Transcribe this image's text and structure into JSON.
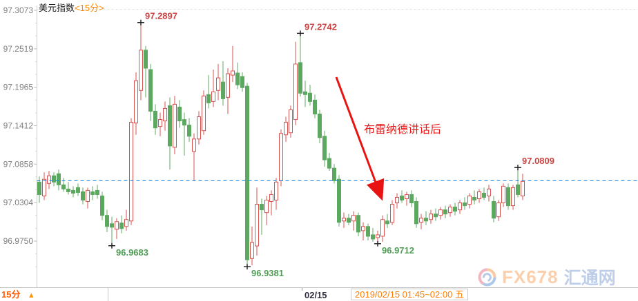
{
  "header": {
    "title": "美元指数",
    "period_tag": "<15分>"
  },
  "annotation": {
    "text": "布雷纳德讲话后"
  },
  "footer": {
    "period_label": "15分",
    "up_arrow": "▲",
    "date_label": "02/15",
    "session_info": "2019/02/15 01:45~02:00 五"
  },
  "watermark": {
    "icon": "globe-swirl-icon",
    "brand": "FX678",
    "site": "汇通网"
  },
  "colors": {
    "up": "#d9514e",
    "down": "#5ca860",
    "last_price_line": "#1f86e0",
    "grid": "#e2e2e2",
    "axis": "#cccccc",
    "tick_label": "#7f7f7f",
    "high_label": "#cb4242",
    "low_label": "#4f9e55",
    "annotation_arrow": "#e81414",
    "marker_cross": "#1a1a1a"
  },
  "chart_data": {
    "type": "candlestick",
    "title": "美元指数",
    "interval": "15分",
    "date": "2019/02/15",
    "session": "01:45~02:00 五",
    "y_ticks": [
      97.3073,
      97.2519,
      97.1965,
      97.1412,
      97.0858,
      97.0304,
      96.975
    ],
    "last_price": 97.062,
    "markers": [
      {
        "price": 97.2897,
        "side": "high",
        "label": "97.2897"
      },
      {
        "price": 97.2742,
        "side": "high",
        "label": "97.2742"
      },
      {
        "price": 97.0809,
        "side": "high",
        "label": "97.0809"
      },
      {
        "price": 96.9683,
        "side": "low",
        "label": "96.9683"
      },
      {
        "price": 96.9381,
        "side": "low",
        "label": "96.9381"
      },
      {
        "price": 96.9712,
        "side": "low",
        "label": "96.9712"
      }
    ],
    "candles": [
      [
        97.06,
        97.068,
        97.03,
        97.042
      ],
      [
        97.04,
        97.074,
        97.034,
        97.064
      ],
      [
        97.058,
        97.076,
        97.05,
        97.069
      ],
      [
        97.069,
        97.074,
        97.054,
        97.06
      ],
      [
        97.072,
        97.078,
        97.048,
        97.056
      ],
      [
        97.056,
        97.066,
        97.046,
        97.05
      ],
      [
        97.05,
        97.06,
        97.042,
        97.046
      ],
      [
        97.048,
        97.054,
        97.038,
        97.044
      ],
      [
        97.052,
        97.058,
        97.04,
        97.045
      ],
      [
        97.046,
        97.052,
        97.028,
        97.034
      ],
      [
        97.032,
        97.052,
        97.022,
        97.048
      ],
      [
        97.046,
        97.054,
        97.034,
        97.042
      ],
      [
        97.048,
        97.056,
        97.036,
        97.042
      ],
      [
        97.04,
        97.046,
        97.005,
        97.012
      ],
      [
        97.012,
        97.02,
        96.988,
        96.996
      ],
      [
        97.0,
        97.01,
        96.9683,
        96.995
      ],
      [
        96.992,
        97.008,
        96.978,
        97.003
      ],
      [
        97.001,
        97.012,
        96.986,
        96.993
      ],
      [
        96.996,
        97.02,
        96.99,
        97.006
      ],
      [
        97.004,
        97.152,
        96.998,
        97.146
      ],
      [
        97.145,
        97.218,
        97.128,
        97.206
      ],
      [
        97.192,
        97.2897,
        97.178,
        97.25
      ],
      [
        97.25,
        97.256,
        97.182,
        97.224
      ],
      [
        97.222,
        97.23,
        97.148,
        97.162
      ],
      [
        97.162,
        97.172,
        97.128,
        97.138
      ],
      [
        97.14,
        97.16,
        97.126,
        97.15
      ],
      [
        97.148,
        97.176,
        97.134,
        97.166
      ],
      [
        97.17,
        97.182,
        97.078,
        97.112
      ],
      [
        97.11,
        97.184,
        97.1,
        97.172
      ],
      [
        97.168,
        97.178,
        97.138,
        97.148
      ],
      [
        97.15,
        97.16,
        97.098,
        97.142
      ],
      [
        97.142,
        97.152,
        97.118,
        97.126
      ],
      [
        97.104,
        97.13,
        97.062,
        97.122
      ],
      [
        97.122,
        97.162,
        97.114,
        97.154
      ],
      [
        97.134,
        97.192,
        97.128,
        97.184
      ],
      [
        97.186,
        97.214,
        97.166,
        97.174
      ],
      [
        97.176,
        97.222,
        97.168,
        97.19
      ],
      [
        97.192,
        97.23,
        97.178,
        97.21
      ],
      [
        97.204,
        97.234,
        97.17,
        97.18
      ],
      [
        97.182,
        97.224,
        97.158,
        97.216
      ],
      [
        97.214,
        97.256,
        97.204,
        97.22
      ],
      [
        97.217,
        97.232,
        97.194,
        97.2
      ],
      [
        97.212,
        97.218,
        97.19,
        97.196
      ],
      [
        97.198,
        97.203,
        96.9381,
        96.948
      ],
      [
        96.95,
        96.996,
        96.94,
        96.973
      ],
      [
        96.968,
        97.052,
        96.954,
        97.028
      ],
      [
        97.028,
        97.036,
        96.984,
        97.02
      ],
      [
        97.016,
        97.04,
        96.998,
        97.034
      ],
      [
        97.032,
        97.048,
        97.012,
        97.042
      ],
      [
        97.034,
        97.066,
        97.02,
        97.06
      ],
      [
        97.062,
        97.136,
        97.054,
        97.13
      ],
      [
        97.128,
        97.154,
        97.118,
        97.146
      ],
      [
        97.131,
        97.17,
        97.124,
        97.164
      ],
      [
        97.15,
        97.262,
        97.142,
        97.23
      ],
      [
        97.232,
        97.2742,
        97.183,
        97.188
      ],
      [
        97.19,
        97.206,
        97.168,
        97.186
      ],
      [
        97.188,
        97.2,
        97.17,
        97.176
      ],
      [
        97.178,
        97.186,
        97.152,
        97.158
      ],
      [
        97.158,
        97.164,
        97.116,
        97.124
      ],
      [
        97.126,
        97.134,
        97.082,
        97.092
      ],
      [
        97.094,
        97.102,
        97.076,
        97.08
      ],
      [
        97.08,
        97.086,
        97.058,
        97.062
      ],
      [
        97.064,
        97.07,
        96.996,
        97.002
      ],
      [
        97.004,
        97.016,
        96.994,
        97.008
      ],
      [
        97.008,
        97.014,
        96.998,
        97.002
      ],
      [
        97.004,
        97.018,
        96.99,
        97.012
      ],
      [
        97.012,
        97.016,
        96.982,
        96.988
      ],
      [
        96.99,
        97.002,
        96.976,
        96.996
      ],
      [
        96.996,
        97.0,
        96.976,
        96.982
      ],
      [
        96.984,
        96.994,
        96.974,
        96.978
      ],
      [
        96.98,
        96.99,
        96.9712,
        96.984
      ],
      [
        96.982,
        97.012,
        96.974,
        97.006
      ],
      [
        97.004,
        97.014,
        96.994,
        97.0
      ],
      [
        97.002,
        97.034,
        96.998,
        97.028
      ],
      [
        97.03,
        97.044,
        97.022,
        97.038
      ],
      [
        97.04,
        97.048,
        97.03,
        97.034
      ],
      [
        97.036,
        97.046,
        97.026,
        97.042
      ],
      [
        97.042,
        97.048,
        97.024,
        97.03
      ],
      [
        97.032,
        97.038,
        96.994,
        97.0
      ],
      [
        97.002,
        97.014,
        96.992,
        97.008
      ],
      [
        97.008,
        97.018,
        96.998,
        97.004
      ],
      [
        97.006,
        97.02,
        97.0,
        97.014
      ],
      [
        97.014,
        97.022,
        97.004,
        97.01
      ],
      [
        97.012,
        97.024,
        97.006,
        97.02
      ],
      [
        97.02,
        97.026,
        97.008,
        97.014
      ],
      [
        97.016,
        97.028,
        97.01,
        97.024
      ],
      [
        97.024,
        97.03,
        97.012,
        97.018
      ],
      [
        97.02,
        97.034,
        97.014,
        97.03
      ],
      [
        97.03,
        97.038,
        97.02,
        97.026
      ],
      [
        97.028,
        97.044,
        97.022,
        97.04
      ],
      [
        97.038,
        97.048,
        97.028,
        97.034
      ],
      [
        97.036,
        97.05,
        97.03,
        97.046
      ],
      [
        97.044,
        97.052,
        97.034,
        97.038
      ],
      [
        97.04,
        97.056,
        97.032,
        97.05
      ],
      [
        97.032,
        97.04,
        97.002,
        97.008
      ],
      [
        97.01,
        97.034,
        97.004,
        97.03
      ],
      [
        97.03,
        97.058,
        97.024,
        97.054
      ],
      [
        97.052,
        97.058,
        97.02,
        97.026
      ],
      [
        97.026,
        97.056,
        97.02,
        97.052
      ],
      [
        97.056,
        97.0809,
        97.038,
        97.042
      ],
      [
        97.04,
        97.072,
        97.034,
        97.061
      ]
    ]
  }
}
